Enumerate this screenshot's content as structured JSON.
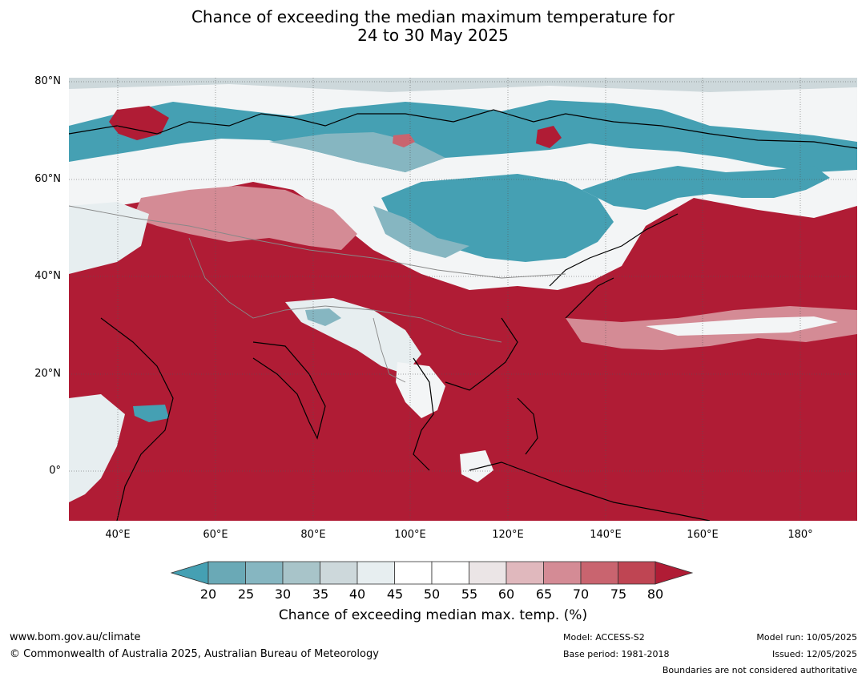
{
  "title": {
    "line1": "Chance of exceeding the median maximum temperature for",
    "line2": "24 to 30 May 2025"
  },
  "map": {
    "lat_labels": [
      "80°N",
      "60°N",
      "40°N",
      "20°N",
      "0°"
    ],
    "lon_labels": [
      "40°E",
      "60°E",
      "80°E",
      "100°E",
      "120°E",
      "140°E",
      "160°E",
      "180°"
    ]
  },
  "colorbar": {
    "ticks": [
      "20",
      "25",
      "30",
      "35",
      "40",
      "45",
      "50",
      "55",
      "60",
      "65",
      "70",
      "75",
      "80"
    ],
    "label": "Chance of exceeding median max. temp. (%)",
    "colors": {
      "below_20": "#45a0b3",
      "20-25": "#6aa9b6",
      "25-30": "#86b6c1",
      "30-35": "#a8c4c9",
      "35-40": "#cdd8db",
      "40-45": "#e7eef0",
      "45-50": "#ffffff",
      "50-55": "#ffffff",
      "55-60": "#ebe5e6",
      "60-65": "#e0b8bd",
      "65-70": "#d48b95",
      "70-75": "#c9646f",
      "75-80": "#bf4553",
      "above_80": "#b01c35"
    }
  },
  "footer": {
    "url": "www.bom.gov.au/climate",
    "copyright": "© Commonwealth of Australia 2025, Australian Bureau of Meteorology",
    "model": "Model: ACCESS-S2",
    "base_period": "Base period: 1981-2018",
    "model_run": "Model run: 10/05/2025",
    "issued": "Issued: 12/05/2025",
    "disclaimer": "Boundaries are not considered authoritative"
  }
}
